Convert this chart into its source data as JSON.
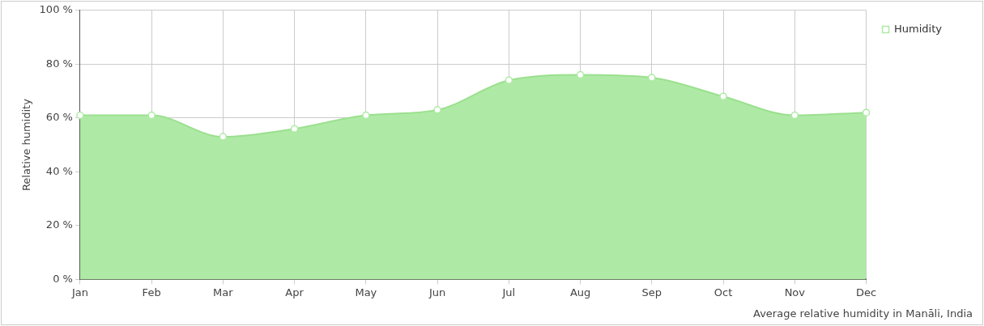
{
  "chart_data": {
    "type": "area",
    "ylabel": "Relative humidity",
    "categories": [
      "Jan",
      "Feb",
      "Mar",
      "Apr",
      "May",
      "Jun",
      "Jul",
      "Aug",
      "Sep",
      "Oct",
      "Nov",
      "Dec"
    ],
    "series": [
      {
        "name": "Humidity",
        "color": "#aeeaa5",
        "values": [
          61,
          61,
          53,
          56,
          61,
          63,
          74,
          76,
          75,
          68,
          61,
          62
        ]
      }
    ],
    "ylim": [
      0,
      100
    ],
    "yticks": [
      {
        "value": 0,
        "label": "0 %"
      },
      {
        "value": 20,
        "label": "20 %"
      },
      {
        "value": 40,
        "label": "40 %"
      },
      {
        "value": 60,
        "label": "60 %"
      },
      {
        "value": 80,
        "label": "80 %"
      },
      {
        "value": 100,
        "label": "100 %"
      }
    ],
    "grid": true,
    "legend": "top right",
    "marker": "circle",
    "annotations": [
      "Average relative humidity in Manāli, India"
    ]
  }
}
